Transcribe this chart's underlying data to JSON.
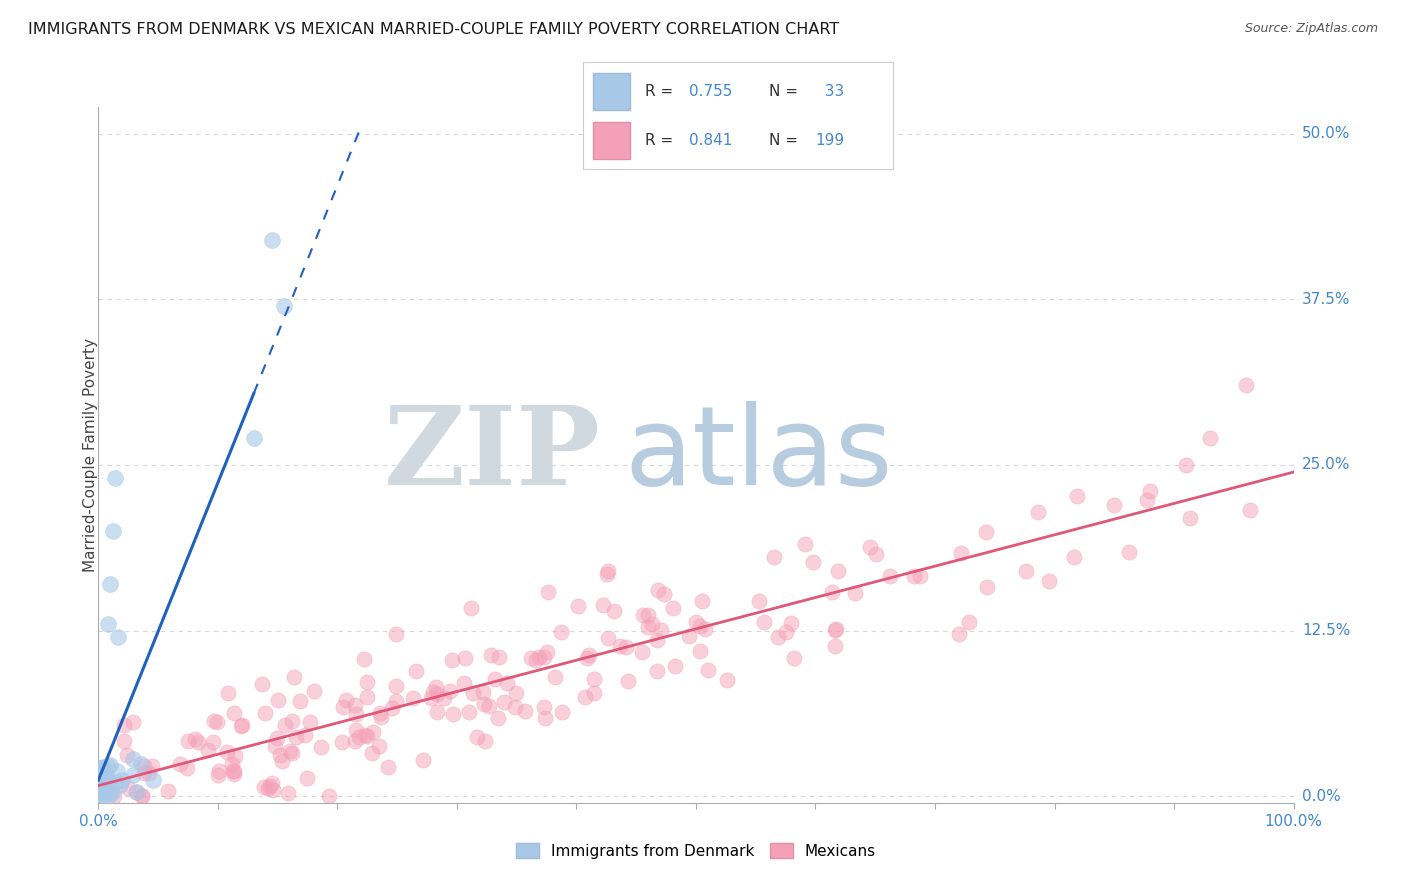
{
  "title": "IMMIGRANTS FROM DENMARK VS MEXICAN MARRIED-COUPLE FAMILY POVERTY CORRELATION CHART",
  "source": "Source: ZipAtlas.com",
  "ylabel": "Married-Couple Family Poverty",
  "ytick_labels": [
    "0.0%",
    "12.5%",
    "25.0%",
    "37.5%",
    "50.0%"
  ],
  "ytick_values": [
    0.0,
    0.125,
    0.25,
    0.375,
    0.5
  ],
  "denmark_R": 0.755,
  "denmark_N": 33,
  "mexican_R": 0.841,
  "mexican_N": 199,
  "denmark_color": "#a8c8e8",
  "mexico_color": "#f4a0b8",
  "denmark_line_color": "#2060c0",
  "mexico_line_color": "#e05878",
  "watermark_ZIP_color": "#d0d8e0",
  "watermark_atlas_color": "#b8cce0",
  "background_color": "#ffffff",
  "grid_color": "#d8d8d8",
  "title_fontsize": 11.5,
  "axis_label_color": "#4488cc",
  "xlim": [
    0.0,
    1.0
  ],
  "ylim": [
    -0.005,
    0.52
  ]
}
